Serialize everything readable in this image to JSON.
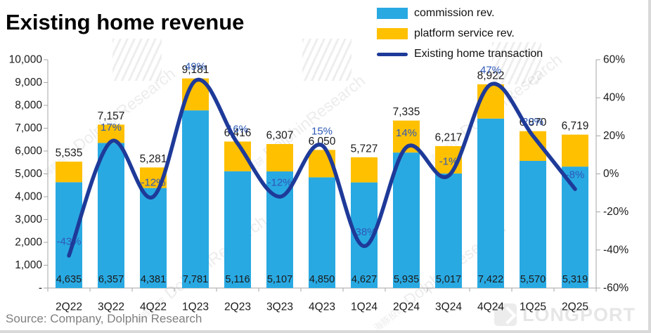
{
  "title": "Existing home revenue",
  "source": "Source: Company, Dolphin Research",
  "legend": [
    {
      "label": "commission rev.",
      "type": "box",
      "color": "#29A9E2"
    },
    {
      "label": "platform service rev.",
      "type": "box",
      "color": "#FFC000"
    },
    {
      "label": "Existing home transaction",
      "type": "line",
      "color": "#1E3A99"
    }
  ],
  "watermark": {
    "brand": "DolphinResearch",
    "cn": "海豚投研",
    "corner": "LONGPORT"
  },
  "colors": {
    "commission": "#29A9E2",
    "platform": "#FFC000",
    "line": "#1E3A99",
    "pct_label": "#2E59B8",
    "axis": "#a6a6a6",
    "text": "#1a1a1a"
  },
  "chart_data": {
    "type": "combo-stacked-bar-line",
    "categories": [
      "2Q22",
      "3Q22",
      "4Q22",
      "1Q23",
      "2Q23",
      "3Q23",
      "4Q23",
      "1Q24",
      "2Q24",
      "3Q24",
      "4Q24",
      "1Q25",
      "2Q25"
    ],
    "series": [
      {
        "name": "commission rev.",
        "type": "bar",
        "stack": "rev",
        "axis": "left",
        "values": [
          4635,
          6357,
          4381,
          7781,
          5116,
          5107,
          4850,
          4627,
          5935,
          5017,
          7422,
          5570,
          5319
        ]
      },
      {
        "name": "platform service rev.",
        "type": "bar",
        "stack": "rev",
        "axis": "left",
        "values": [
          900,
          800,
          900,
          1400,
          1300,
          1200,
          1200,
          1100,
          1400,
          1200,
          1500,
          1300,
          1400
        ]
      },
      {
        "name": "Existing home transaction",
        "type": "line",
        "axis": "right",
        "unit": "%",
        "values": [
          -43,
          17,
          -12,
          49,
          16,
          -12,
          15,
          -38,
          14,
          -1,
          47,
          20,
          -8
        ]
      }
    ],
    "stack_totals": [
      5535,
      7157,
      5281,
      9181,
      6416,
      6307,
      6050,
      5727,
      7335,
      6217,
      8922,
      6870,
      6719
    ],
    "left_axis": {
      "min": 0,
      "max": 10000,
      "step": 1000,
      "zero_label": "-"
    },
    "right_axis": {
      "min": -60,
      "max": 60,
      "step": 20,
      "suffix": "%"
    },
    "grid": false,
    "legend_position": "top-right"
  }
}
